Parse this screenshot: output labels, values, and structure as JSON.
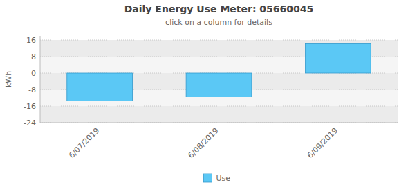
{
  "chart_data": {
    "type": "bar",
    "title": "Daily Energy Use Meter: 05660045",
    "subtitle": "click on a column for details",
    "categories": [
      "6/07/2019",
      "6/08/2019",
      "6/09/2019"
    ],
    "series": [
      {
        "name": "Use",
        "color": "#5BC8F5",
        "values": [
          -13.5,
          -11.5,
          14.2
        ]
      }
    ],
    "ylabel": "kWh",
    "ylim": [
      -24,
      18
    ],
    "yticks": [
      -24,
      -16,
      -8,
      0,
      8,
      16
    ],
    "grid": true,
    "legend": "bottom"
  }
}
